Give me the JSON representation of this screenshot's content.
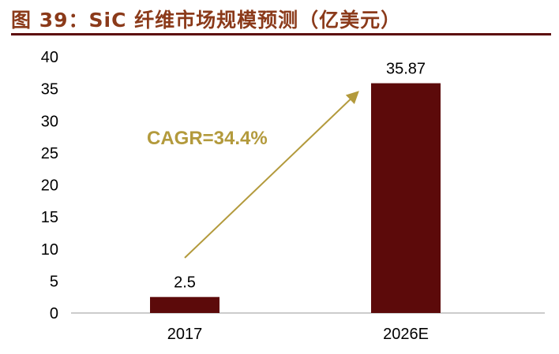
{
  "chart_data": {
    "type": "bar",
    "title": "图 39：SiC 纤维市场规模预测（亿美元）",
    "categories": [
      "2017",
      "2026E"
    ],
    "values": [
      2.5,
      35.87
    ],
    "data_labels": [
      "2.5",
      "35.87"
    ],
    "ylim": [
      0,
      40
    ],
    "yticks": [
      0,
      5,
      10,
      15,
      20,
      25,
      30,
      35,
      40
    ],
    "grid": false,
    "bar_color": "#5c0a0a",
    "annotation": {
      "text": "CAGR=34.4%",
      "color": "#b39a3c",
      "arrow": "from 2017 bar to 2026E bar"
    }
  }
}
